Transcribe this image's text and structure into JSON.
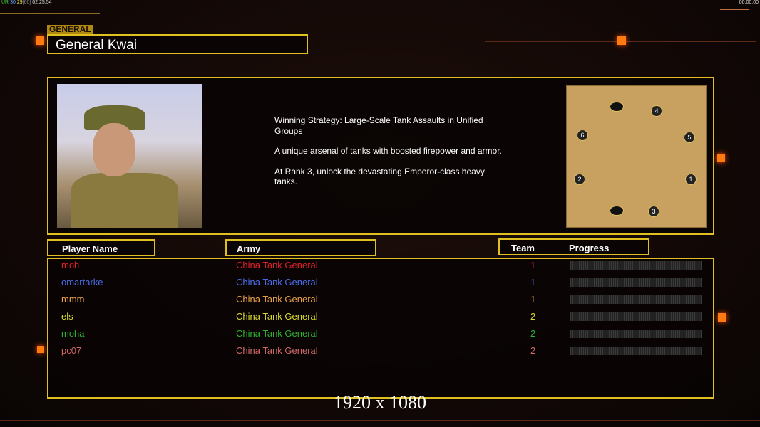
{
  "hud": {
    "fps_a": "UR",
    "fps_b": "30",
    "fps_c": "29",
    "fps_d": "[60]",
    "clock": "02:25:54",
    "timer": "00:00:00"
  },
  "general": {
    "tag": "GENERAL",
    "name": "General Kwai"
  },
  "description": [
    "Winning Strategy: Large-Scale Tank Assaults in Unified Groups",
    "A unique arsenal of tanks with boosted firepower and armor.",
    "At Rank 3, unlock the devastating Emperor-class heavy tanks."
  ],
  "map": {
    "slots": [
      "1",
      "2",
      "3",
      "4",
      "5",
      "6"
    ]
  },
  "table": {
    "headers": {
      "player": "Player Name",
      "army": "Army",
      "team": "Team",
      "progress": "Progress"
    },
    "rows": [
      {
        "player": "moh",
        "army": "China Tank General",
        "team": "1",
        "color": "#e02028",
        "progress": 0
      },
      {
        "player": "omartarke",
        "army": "China Tank General",
        "team": "1",
        "color": "#4a6ce8",
        "progress": 0
      },
      {
        "player": "mmm",
        "army": "China Tank General",
        "team": "1",
        "color": "#e8a048",
        "progress": 0
      },
      {
        "player": "els",
        "army": "China Tank General",
        "team": "2",
        "color": "#d8d830",
        "progress": 0
      },
      {
        "player": "moha",
        "army": "China Tank General",
        "team": "2",
        "color": "#30b030",
        "progress": 0
      },
      {
        "player": "pc07",
        "army": "China Tank General",
        "team": "2",
        "color": "#d06868",
        "progress": 0
      }
    ]
  },
  "footer": "1920 x 1080"
}
